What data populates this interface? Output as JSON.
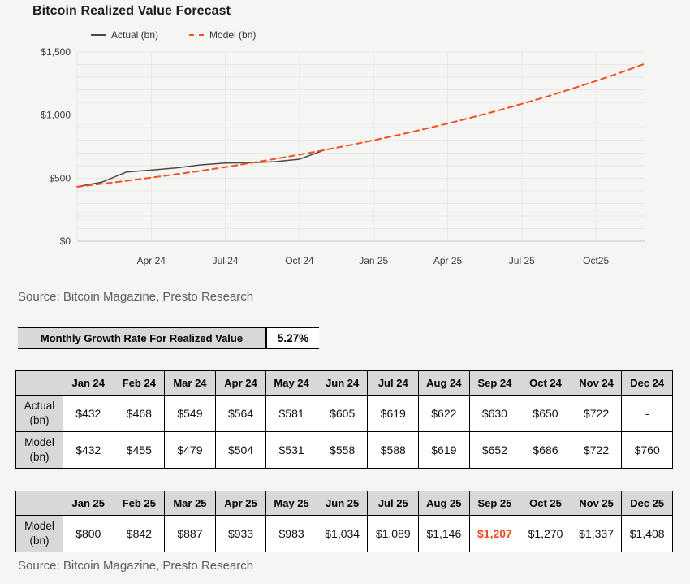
{
  "colors": {
    "page_bg": "#f5f5f4",
    "grid": "#e8e8e6",
    "axis_line": "#c7c7c5",
    "actual_line": "#4a4a4a",
    "model_line": "#f4511e",
    "highlight_text": "#f04a22",
    "header_bg": "#d8d8d8"
  },
  "chart": {
    "title": "Bitcoin Realized Value Forecast",
    "legend": {
      "actual_label": "Actual (bn)",
      "model_label": "Model (bn)"
    }
  },
  "chart_data": {
    "type": "line",
    "title": "Bitcoin Realized Value Forecast",
    "x_categories": [
      "Jan 24",
      "Feb 24",
      "Mar 24",
      "Apr 24",
      "May 24",
      "Jun 24",
      "Jul 24",
      "Aug 24",
      "Sep 24",
      "Oct 24",
      "Nov 24",
      "Dec 24",
      "Jan 25",
      "Feb 25",
      "Mar 25",
      "Apr 25",
      "May 25",
      "Jun 25",
      "Jul 25",
      "Aug 25",
      "Sep 25",
      "Oct 25",
      "Nov 25",
      "Dec 25"
    ],
    "x_tick_indices": [
      3,
      6,
      9,
      12,
      15,
      18,
      21
    ],
    "x_tick_labels": [
      "Apr 24",
      "Jul 24",
      "Oct 24",
      "Jan 25",
      "Apr 25",
      "Jul 25",
      "Oct25"
    ],
    "ylim": [
      0,
      1500
    ],
    "y_minor_step": 100,
    "y_ticks": [
      {
        "label": "$0",
        "value": 0
      },
      {
        "label": "$500",
        "value": 500
      },
      {
        "label": "$1,000",
        "value": 1000
      },
      {
        "label": "$1,500",
        "value": 1500
      }
    ],
    "grid": true,
    "legend_position": "top",
    "series": [
      {
        "name": "Actual (bn)",
        "style": "solid",
        "color": "#4a4a4a",
        "values": [
          432,
          468,
          549,
          564,
          581,
          605,
          619,
          622,
          630,
          650,
          722
        ]
      },
      {
        "name": "Model (bn)",
        "style": "dashed",
        "color": "#f4511e",
        "values": [
          432,
          455,
          479,
          504,
          531,
          558,
          588,
          619,
          652,
          686,
          722,
          760,
          800,
          842,
          887,
          933,
          983,
          1034,
          1089,
          1146,
          1207,
          1270,
          1337,
          1408
        ]
      }
    ]
  },
  "source_top": "Source: Bitcoin Magazine, Presto Research",
  "growth_rate": {
    "label": "Monthly Growth Rate For Realized Value",
    "value": "5.27%"
  },
  "table_2024": {
    "columns": [
      "Jan 24",
      "Feb 24",
      "Mar 24",
      "Apr 24",
      "May 24",
      "Jun 24",
      "Jul 24",
      "Aug 24",
      "Sep 24",
      "Oct 24",
      "Nov 24",
      "Dec 24"
    ],
    "rows": [
      {
        "header_lines": [
          "Actual",
          "(bn)"
        ],
        "values": [
          "$432",
          "$468",
          "$549",
          "$564",
          "$581",
          "$605",
          "$619",
          "$622",
          "$630",
          "$650",
          "$722",
          "-"
        ]
      },
      {
        "header_lines": [
          "Model",
          "(bn)"
        ],
        "values": [
          "$432",
          "$455",
          "$479",
          "$504",
          "$531",
          "$558",
          "$588",
          "$619",
          "$652",
          "$686",
          "$722",
          "$760"
        ]
      }
    ]
  },
  "table_2025": {
    "columns": [
      "Jan 25",
      "Feb 25",
      "Mar 25",
      "Apr 25",
      "May 25",
      "Jun 25",
      "Jul 25",
      "Aug 25",
      "Sep 25",
      "Oct 25",
      "Nov 25",
      "Dec 25"
    ],
    "rows": [
      {
        "header_lines": [
          "Model",
          "(bn)"
        ],
        "values": [
          "$800",
          "$842",
          "$887",
          "$933",
          "$983",
          "$1,034",
          "$1,089",
          "$1,146",
          "$1,207",
          "$1,270",
          "$1,337",
          "$1,408"
        ],
        "highlight_index": 8,
        "highlight_color": "#f04a22"
      }
    ]
  },
  "source_bottom": "Source: Bitcoin Magazine, Presto Research"
}
